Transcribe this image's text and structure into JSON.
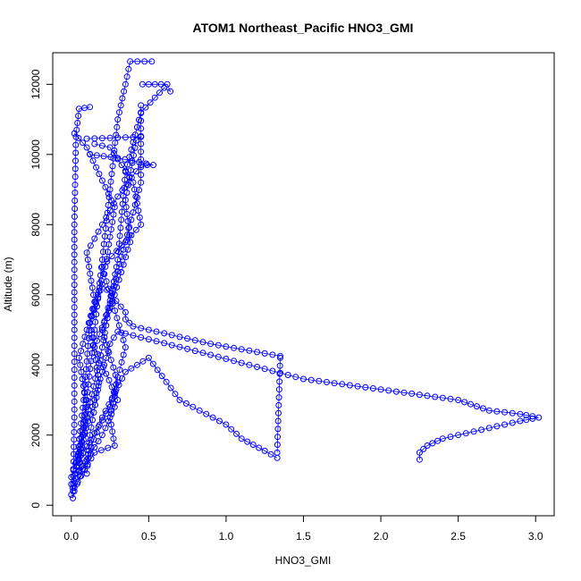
{
  "chart_data": {
    "type": "scatter",
    "title": "ATOM1 Northeast_Pacific HNO3_GMI",
    "xlabel": "HNO3_GMI",
    "ylabel": "Altitude (m)",
    "xlim": [
      -0.12,
      3.12
    ],
    "ylim": [
      -300,
      12900
    ],
    "xticks": [
      0.0,
      0.5,
      1.0,
      1.5,
      2.0,
      2.5,
      3.0
    ],
    "xtick_labels": [
      "0.0",
      "0.5",
      "1.0",
      "1.5",
      "2.0",
      "2.5",
      "3.0"
    ],
    "yticks": [
      0,
      2000,
      4000,
      6000,
      8000,
      10000,
      12000
    ],
    "ytick_labels": [
      "0",
      "2000",
      "4000",
      "6000",
      "8000",
      "10000",
      "12000"
    ],
    "grid": false,
    "marker": "open-circle",
    "color": "#0000ff",
    "series": [
      {
        "values": [
          [
            0.01,
            200
          ],
          [
            0.02,
            2500
          ],
          [
            0.02,
            5000
          ],
          [
            0.02,
            8000
          ],
          [
            0.03,
            10500
          ],
          [
            0.05,
            11300
          ],
          [
            0.12,
            11350
          ]
        ]
      },
      {
        "values": [
          [
            0.0,
            300
          ],
          [
            0.05,
            1500
          ],
          [
            0.1,
            3000
          ],
          [
            0.15,
            5000
          ],
          [
            0.2,
            7000
          ],
          [
            0.25,
            9000
          ],
          [
            0.3,
            11000
          ],
          [
            0.35,
            12000
          ],
          [
            0.38,
            12650
          ],
          [
            0.52,
            12650
          ]
        ]
      },
      {
        "values": [
          [
            0.05,
            1000
          ],
          [
            0.1,
            2500
          ],
          [
            0.2,
            4500
          ],
          [
            0.3,
            7000
          ],
          [
            0.35,
            9500
          ],
          [
            0.45,
            11200
          ],
          [
            0.6,
            11900
          ],
          [
            0.64,
            11800
          ],
          [
            0.62,
            12000
          ],
          [
            0.46,
            12000
          ]
        ]
      },
      {
        "values": [
          [
            0.02,
            500
          ],
          [
            0.15,
            1500
          ],
          [
            0.28,
            1700
          ],
          [
            0.25,
            2500
          ],
          [
            0.3,
            3500
          ],
          [
            0.2,
            5000
          ],
          [
            0.35,
            7500
          ],
          [
            0.45,
            9200
          ],
          [
            0.45,
            11400
          ]
        ]
      },
      {
        "values": [
          [
            0.0,
            600
          ],
          [
            0.2,
            2000
          ],
          [
            0.3,
            3000
          ],
          [
            0.15,
            4500
          ],
          [
            0.28,
            6000
          ],
          [
            0.38,
            7500
          ],
          [
            0.35,
            8700
          ],
          [
            0.42,
            10400
          ],
          [
            0.45,
            10500
          ],
          [
            0.1,
            10450
          ]
        ]
      },
      {
        "values": [
          [
            0.05,
            1200
          ],
          [
            0.1,
            2800
          ],
          [
            0.05,
            4200
          ],
          [
            0.15,
            5800
          ],
          [
            0.1,
            7200
          ],
          [
            0.3,
            8800
          ],
          [
            0.45,
            9700
          ],
          [
            0.53,
            9700
          ],
          [
            0.3,
            9900
          ],
          [
            0.12,
            10000
          ]
        ]
      },
      {
        "values": [
          [
            0.1,
            900
          ],
          [
            0.12,
            2000
          ],
          [
            0.18,
            3500
          ],
          [
            0.12,
            5200
          ],
          [
            0.22,
            6800
          ],
          [
            0.28,
            8500
          ],
          [
            0.1,
            10200
          ],
          [
            0.02,
            10600
          ]
        ]
      },
      {
        "values": [
          [
            0.03,
            1000
          ],
          [
            0.08,
            3000
          ],
          [
            0.12,
            5200
          ],
          [
            0.2,
            6300
          ],
          [
            0.35,
            5500
          ],
          [
            0.35,
            5300
          ],
          [
            0.4,
            5100
          ],
          [
            0.9,
            4600
          ],
          [
            1.35,
            4250
          ]
        ]
      },
      {
        "values": [
          [
            0.0,
            800
          ],
          [
            0.15,
            3000
          ],
          [
            0.25,
            4600
          ],
          [
            0.3,
            4950
          ],
          [
            0.8,
            4400
          ],
          [
            1.5,
            3600
          ],
          [
            2.0,
            3300
          ],
          [
            2.5,
            3000
          ],
          [
            2.7,
            2700
          ],
          [
            2.9,
            2600
          ],
          [
            3.02,
            2500
          ],
          [
            2.9,
            2400
          ],
          [
            2.6,
            2100
          ],
          [
            2.4,
            1900
          ],
          [
            2.3,
            1700
          ],
          [
            2.25,
            1500
          ],
          [
            2.25,
            1300
          ]
        ]
      },
      {
        "values": [
          [
            0.02,
            400
          ],
          [
            0.2,
            2500
          ],
          [
            0.35,
            3800
          ],
          [
            0.5,
            4200
          ],
          [
            0.7,
            3000
          ],
          [
            1.0,
            2300
          ],
          [
            1.1,
            1900
          ],
          [
            1.25,
            1550
          ],
          [
            1.33,
            1350
          ]
        ]
      },
      {
        "values": [
          [
            1.33,
            1500
          ],
          [
            1.35,
            4200
          ]
        ]
      },
      {
        "values": [
          [
            0.05,
            1300
          ],
          [
            0.25,
            2800
          ],
          [
            0.35,
            4500
          ],
          [
            0.2,
            6800
          ],
          [
            0.45,
            8000
          ],
          [
            0.4,
            9200
          ],
          [
            0.25,
            10200
          ],
          [
            0.15,
            10300
          ]
        ]
      }
    ]
  }
}
